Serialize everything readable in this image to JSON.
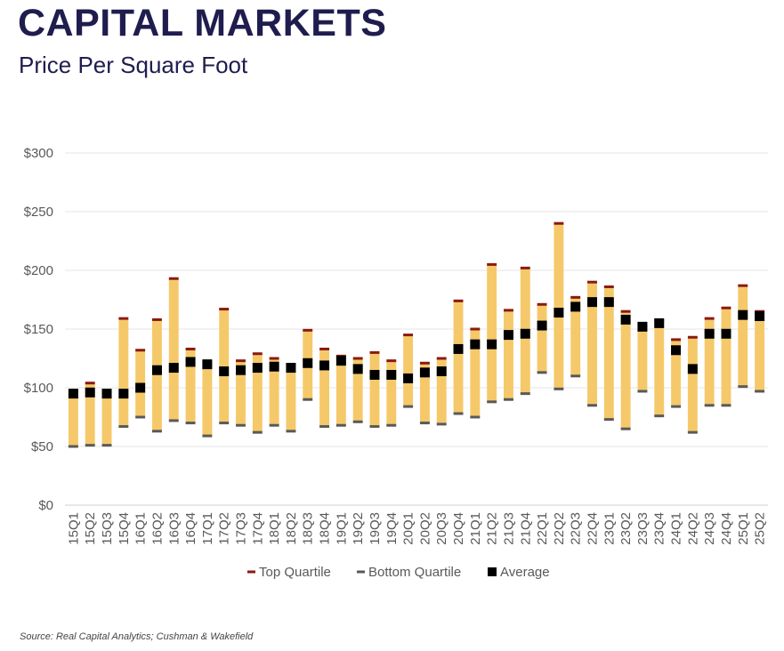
{
  "header": {
    "title": "CAPITAL MARKETS",
    "subtitle": "Price Per Square Foot"
  },
  "source": "Source: Real Capital Analytics; Cushman & Wakefield",
  "colors": {
    "title": "#1f1d4e",
    "bar": "#f5c96a",
    "top_quartile": "#8b1a10",
    "bottom_quartile": "#595959",
    "average": "#000000",
    "grid": "#e6e6e6",
    "axis_text": "#595959"
  },
  "chart_data": {
    "type": "floating-bar",
    "ylim": [
      0,
      300
    ],
    "yticks": [
      0,
      50,
      100,
      150,
      200,
      250,
      300
    ],
    "ytick_labels": [
      "$0",
      "$50",
      "$100",
      "$150",
      "$200",
      "$250",
      "$300"
    ],
    "categories": [
      "15Q1",
      "15Q2",
      "15Q3",
      "15Q4",
      "16Q1",
      "16Q2",
      "16Q3",
      "16Q4",
      "17Q1",
      "17Q2",
      "17Q3",
      "17Q4",
      "18Q1",
      "18Q2",
      "18Q3",
      "18Q4",
      "19Q1",
      "19Q2",
      "19Q3",
      "19Q4",
      "20Q1",
      "20Q2",
      "20Q3",
      "20Q4",
      "21Q1",
      "21Q2",
      "21Q3",
      "21Q4",
      "22Q1",
      "22Q2",
      "22Q3",
      "22Q4",
      "23Q1",
      "23Q2",
      "23Q3",
      "23Q4",
      "24Q1",
      "24Q2",
      "24Q3",
      "24Q4",
      "25Q1",
      "25Q2"
    ],
    "series": [
      {
        "name": "Top Quartile",
        "values": [
          97,
          104,
          98,
          159,
          132,
          158,
          193,
          133,
          121,
          167,
          123,
          129,
          125,
          120,
          149,
          133,
          127,
          125,
          130,
          123,
          145,
          121,
          125,
          174,
          150,
          205,
          166,
          202,
          171,
          240,
          177,
          190,
          186,
          165,
          153,
          157,
          141,
          143,
          159,
          168,
          187,
          165
        ]
      },
      {
        "name": "Bottom Quartile",
        "values": [
          50,
          51,
          51,
          67,
          75,
          63,
          72,
          70,
          59,
          70,
          68,
          62,
          68,
          63,
          90,
          67,
          68,
          71,
          67,
          68,
          84,
          70,
          69,
          78,
          75,
          88,
          90,
          95,
          113,
          99,
          110,
          85,
          73,
          65,
          97,
          76,
          84,
          62,
          85,
          85,
          101,
          97
        ]
      },
      {
        "name": "Average",
        "values": [
          95,
          96,
          95,
          95,
          100,
          115,
          117,
          122,
          120,
          114,
          115,
          117,
          118,
          117,
          121,
          119,
          123,
          116,
          111,
          111,
          108,
          113,
          114,
          133,
          137,
          137,
          145,
          146,
          153,
          164,
          169,
          173,
          173,
          158,
          152,
          155,
          132,
          116,
          146,
          146,
          162,
          161
        ]
      }
    ],
    "legend": [
      "Top Quartile",
      "Bottom Quartile",
      "Average"
    ],
    "legend_position": "bottom-center",
    "grid": true
  }
}
